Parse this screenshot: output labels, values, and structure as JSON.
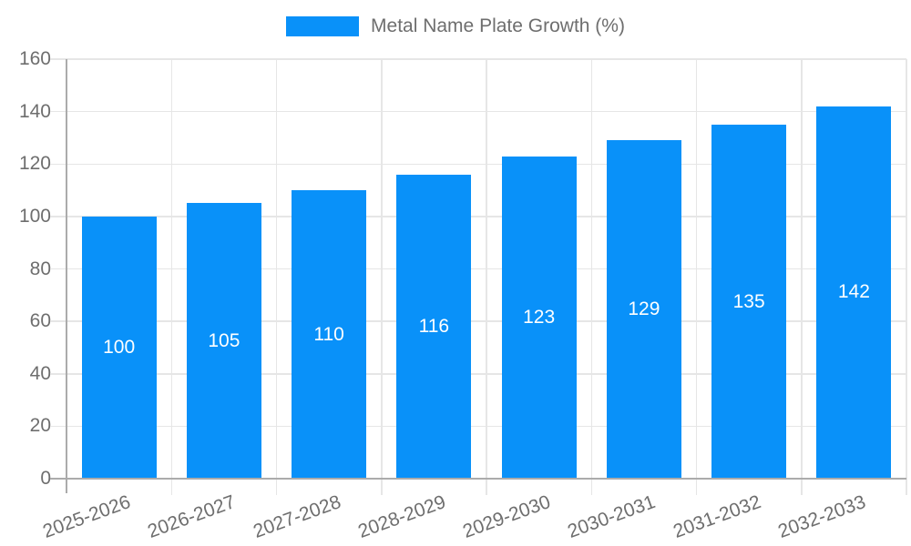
{
  "chart_data": {
    "type": "bar",
    "title": "",
    "legend": {
      "position": "top",
      "label": "Metal Name Plate Growth (%)"
    },
    "categories": [
      "2025-2026",
      "2026-2027",
      "2027-2028",
      "2028-2029",
      "2029-2030",
      "2030-2031",
      "2031-2032",
      "2032-2033"
    ],
    "series": [
      {
        "name": "Metal Name Plate Growth (%)",
        "values": [
          100,
          105,
          110,
          116,
          123,
          129,
          135,
          142
        ]
      }
    ],
    "value_labels_shown": true,
    "xlabel": "",
    "ylabel": "",
    "ylim": [
      0,
      160
    ],
    "yticks": [
      0,
      20,
      40,
      60,
      80,
      100,
      120,
      140,
      160
    ],
    "grid": true,
    "legend_position": "top",
    "colors": {
      "bar": "#0991f9",
      "value_label": "#ffffff",
      "grid": "#e6e6e6",
      "axis": "#ababab",
      "text": "#6e6e6e",
      "background": "#ffffff"
    }
  }
}
